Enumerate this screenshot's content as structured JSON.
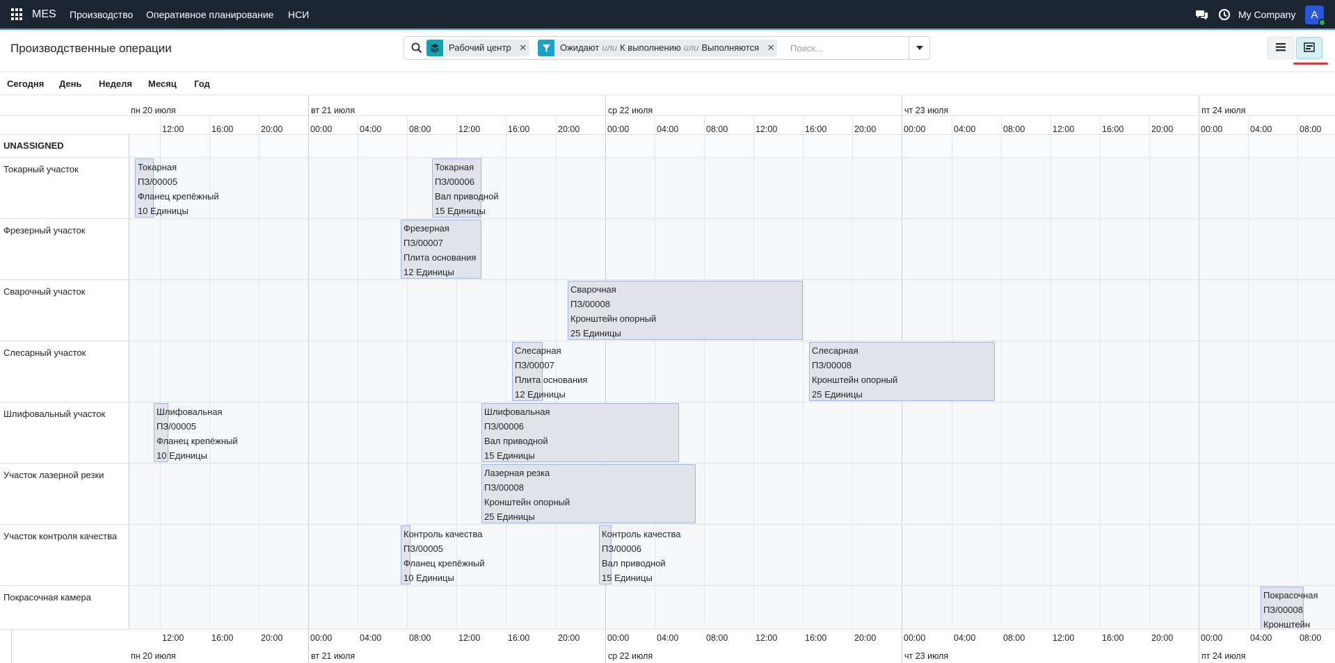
{
  "navbar": {
    "app_name": "MES",
    "menus": [
      "Производство",
      "Оперативное планирование",
      "НСИ"
    ],
    "company": "My Company",
    "avatar_letter": "A"
  },
  "control_panel": {
    "title": "Производственные операции",
    "facets": [
      {
        "kind": "group",
        "values": [
          "Рабочий центр"
        ]
      },
      {
        "kind": "filter",
        "values": [
          "Ожидают",
          "К выполнению",
          "Выполняются"
        ],
        "separator": "или"
      }
    ],
    "search_placeholder": "Поиск..."
  },
  "scales": [
    "Сегодня",
    "День",
    "Неделя",
    "Месяц",
    "Год"
  ],
  "gantt": {
    "days": [
      "пн 20 июля",
      "вт 21 июля",
      "ср 22 июля",
      "чт 23 июля",
      "пт 24 июля"
    ],
    "hour_labels": [
      "00:00",
      "04:00",
      "08:00",
      "12:00",
      "16:00",
      "20:00"
    ],
    "group_row": "UNASSIGNED",
    "rows": [
      "Токарный участок",
      "Фрезерный участок",
      "Сварочный участок",
      "Слесарный участок",
      "Шлифовальный участок",
      "Участок лазерной резки",
      "Участок контроля качества",
      "Покрасочная камера"
    ],
    "pills": [
      {
        "row": 0,
        "lines": [
          "Токарная",
          "ПЗ/00005",
          "Фланец крепёжный",
          "10 Единицы"
        ]
      },
      {
        "row": 0,
        "lines": [
          "Токарная",
          "ПЗ/00006",
          "Вал приводной",
          "15 Единицы"
        ]
      },
      {
        "row": 1,
        "lines": [
          "Фрезерная",
          "ПЗ/00007",
          "Плита основания",
          "12 Единицы"
        ]
      },
      {
        "row": 2,
        "lines": [
          "Сварочная",
          "ПЗ/00008",
          "Кронштейн опорный",
          "25 Единицы"
        ]
      },
      {
        "row": 3,
        "lines": [
          "Слесарная",
          "ПЗ/00007",
          "Плита основания",
          "12 Единицы"
        ]
      },
      {
        "row": 3,
        "lines": [
          "Слесарная",
          "ПЗ/00008",
          "Кронштейн опорный",
          "25 Единицы"
        ]
      },
      {
        "row": 4,
        "lines": [
          "Шлифовальная",
          "ПЗ/00005",
          "Фланец крепёжный",
          "10 Единицы"
        ]
      },
      {
        "row": 4,
        "lines": [
          "Шлифовальная",
          "ПЗ/00006",
          "Вал приводной",
          "15 Единицы"
        ]
      },
      {
        "row": 5,
        "lines": [
          "Лазерная резка",
          "ПЗ/00008",
          "Кронштейн опорный",
          "25 Единицы"
        ]
      },
      {
        "row": 6,
        "lines": [
          "Контроль качества",
          "ПЗ/00005",
          "Фланец крепёжный",
          "10 Единицы"
        ]
      },
      {
        "row": 6,
        "lines": [
          "Контроль качества",
          "ПЗ/00006",
          "Вал приводной",
          "15 Единицы"
        ]
      },
      {
        "row": 7,
        "lines": [
          "Покрасочная",
          "ПЗ/00008",
          "Кронштейн"
        ]
      }
    ]
  }
}
